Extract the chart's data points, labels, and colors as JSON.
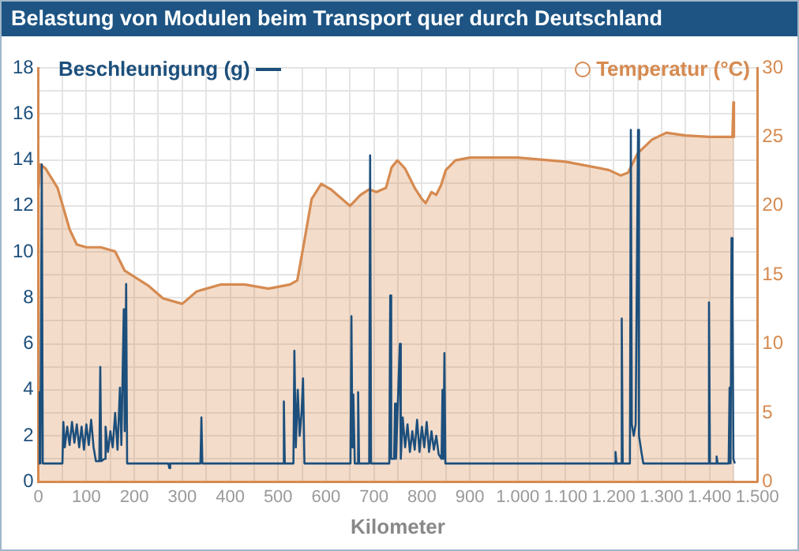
{
  "chart_data": {
    "type": "line",
    "title": "Belastung von Modulen beim Transport quer durch Deutschland",
    "xlabel": "Kilometer",
    "legend": "top",
    "grid": true,
    "marker": "none",
    "xlim": [
      0,
      1500
    ],
    "xticks": [
      0,
      {
        "value": 50,
        "label": null
      },
      100,
      {
        "value": 150,
        "label": null
      },
      200,
      {
        "value": 250,
        "label": null
      },
      300,
      {
        "value": 350,
        "label": null
      },
      400,
      {
        "value": 450,
        "label": null
      },
      500,
      {
        "value": 550,
        "label": null
      },
      600,
      {
        "value": 650,
        "label": null
      },
      700,
      {
        "value": 750,
        "label": null
      },
      800,
      {
        "value": 850,
        "label": null
      },
      900,
      {
        "value": 950,
        "label": null
      },
      {
        "value": 1000,
        "label": "1.000"
      },
      {
        "value": 1050,
        "label": null
      },
      {
        "value": 1100,
        "label": "1.100"
      },
      {
        "value": 1150,
        "label": null
      },
      {
        "value": 1200,
        "label": "1.200"
      },
      {
        "value": 1250,
        "label": null
      },
      {
        "value": 1300,
        "label": "1.300"
      },
      {
        "value": 1350,
        "label": null
      },
      {
        "value": 1400,
        "label": "1.400"
      },
      {
        "value": 1450,
        "label": null
      },
      {
        "value": 1500,
        "label": "1.500"
      }
    ],
    "ylim": [
      0,
      18
    ],
    "yticks": [
      0,
      {
        "value": 1,
        "label": null
      },
      2,
      {
        "value": 3,
        "label": null
      },
      4,
      {
        "value": 5,
        "label": null
      },
      6,
      {
        "value": 7,
        "label": null
      },
      8,
      {
        "value": 9,
        "label": null
      },
      10,
      {
        "value": 11,
        "label": null
      },
      12,
      {
        "value": 13,
        "label": null
      },
      14,
      {
        "value": 15,
        "label": null
      },
      16,
      {
        "value": 17,
        "label": null
      },
      18
    ],
    "y2lim": [
      0,
      30
    ],
    "y2ticks": [
      0,
      5,
      10,
      15,
      20,
      25,
      30
    ],
    "series": [
      {
        "name": "Temperatur (°C)",
        "type": "area",
        "axis": "y2",
        "color": "#d68a50",
        "x": [
          0,
          4,
          15,
          40,
          65,
          80,
          100,
          130,
          160,
          180,
          230,
          260,
          300,
          330,
          380,
          430,
          480,
          510,
          525,
          540,
          555,
          570,
          590,
          610,
          650,
          672,
          690,
          705,
          725,
          737,
          749,
          765,
          785,
          800,
          808,
          820,
          830,
          840,
          850,
          870,
          900,
          1000,
          1100,
          1190,
          1215,
          1230,
          1250,
          1280,
          1310,
          1350,
          1400,
          1448,
          1450,
          1451
        ],
        "values": [
          21.3,
          23.0,
          22.7,
          21.3,
          18.3,
          17.2,
          17.0,
          17.0,
          16.7,
          15.3,
          14.2,
          13.3,
          12.9,
          13.8,
          14.3,
          14.3,
          14.0,
          14.2,
          14.3,
          14.6,
          17.5,
          20.5,
          21.6,
          21.2,
          20.0,
          20.8,
          21.2,
          21.0,
          21.3,
          22.8,
          23.3,
          22.7,
          21.3,
          20.5,
          20.2,
          21.0,
          20.8,
          21.5,
          22.6,
          23.3,
          23.5,
          23.5,
          23.2,
          22.6,
          22.2,
          22.4,
          23.8,
          24.8,
          25.3,
          25.1,
          25.0,
          25.0,
          27.5,
          25.0
        ]
      },
      {
        "name": "Beschleunigung (g)",
        "type": "line",
        "axis": "y",
        "color": "#1c4f7c",
        "x": [
          0,
          2,
          4,
          7,
          9,
          50,
          52,
          55,
          60,
          65,
          70,
          75,
          80,
          85,
          90,
          95,
          100,
          105,
          110,
          115,
          120,
          127,
          129,
          131,
          138,
          140,
          145,
          150,
          155,
          160,
          165,
          170,
          173,
          178,
          180,
          183,
          185,
          271,
          273,
          275,
          338,
          340,
          342,
          510,
          512,
          514,
          532,
          534,
          537,
          541,
          545,
          549,
          552,
          555,
          651,
          653,
          655,
          657,
          660,
          665,
          667,
          669,
          690,
          692,
          694,
          732,
          734,
          736,
          742,
          744,
          746,
          752,
          754,
          756,
          760,
          765,
          770,
          775,
          780,
          785,
          790,
          795,
          800,
          805,
          810,
          815,
          820,
          825,
          830,
          835,
          841,
          843,
          845,
          847,
          849,
          1202,
          1204,
          1206,
          1215,
          1217,
          1219,
          1234,
          1236,
          1238,
          1242,
          1246,
          1251,
          1253,
          1258,
          1262,
          1397,
          1399,
          1401,
          1413,
          1415,
          1417,
          1440,
          1442,
          1444,
          1446,
          1448,
          1450,
          1453
        ],
        "values": [
          0.8,
          3.9,
          0.8,
          13.8,
          0.8,
          0.8,
          2.6,
          1.5,
          2.4,
          1.6,
          2.6,
          1.7,
          2.5,
          1.5,
          2.4,
          1.4,
          2.5,
          1.6,
          2.7,
          1.5,
          0.9,
          0.9,
          5.0,
          0.9,
          1.0,
          2.4,
          1.3,
          2.2,
          1.5,
          3.0,
          1.4,
          4.1,
          1.6,
          7.5,
          2.2,
          8.6,
          0.8,
          0.8,
          0.6,
          0.8,
          0.8,
          2.8,
          0.8,
          0.8,
          3.5,
          0.8,
          0.8,
          5.7,
          1.5,
          4.0,
          2.0,
          3.0,
          4.5,
          0.8,
          0.8,
          7.2,
          1.5,
          3.8,
          0.8,
          0.8,
          3.9,
          0.8,
          0.8,
          14.2,
          0.8,
          0.8,
          8.1,
          1.0,
          1.0,
          3.4,
          1.0,
          4.8,
          6.0,
          1.0,
          2.8,
          1.5,
          2.5,
          1.3,
          2.2,
          1.4,
          2.7,
          1.3,
          2.4,
          1.5,
          2.6,
          1.3,
          2.2,
          1.4,
          2.0,
          1.2,
          1.0,
          4.0,
          1.0,
          5.6,
          0.8,
          0.8,
          1.3,
          0.8,
          0.8,
          7.1,
          0.8,
          0.8,
          15.3,
          2.5,
          2.0,
          2.5,
          15.3,
          2.0,
          1.3,
          0.8,
          0.8,
          7.8,
          0.8,
          0.8,
          1.1,
          0.8,
          0.8,
          4.1,
          0.8,
          10.6,
          8.0,
          1.0,
          0.8
        ]
      }
    ]
  }
}
